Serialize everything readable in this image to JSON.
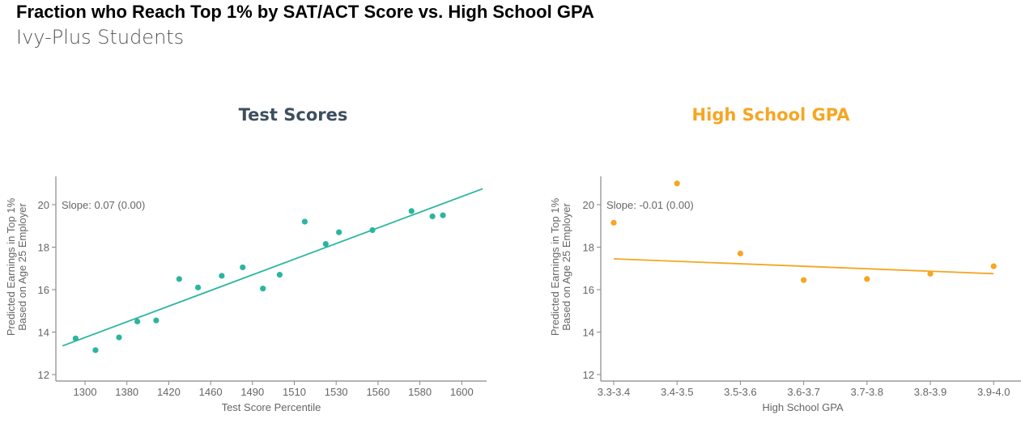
{
  "title": "Fraction who Reach Top 1% by SAT/ACT Score vs. High School GPA",
  "subtitle": "Ivy-Plus Students",
  "chart_data": [
    {
      "type": "scatter",
      "title": "Test Scores",
      "title_color": "#3d4f5f",
      "color": "#2bb5a0",
      "xlabel": "Test Score Percentile",
      "ylabel": [
        "Predicted Earnings in Top 1%",
        "Based on Age 25 Employer"
      ],
      "x_ticks": [
        1300,
        1380,
        1420,
        1460,
        1490,
        1510,
        1530,
        1560,
        1580,
        1600
      ],
      "y_ticks": [
        12,
        14,
        16,
        18,
        20
      ],
      "ylim": [
        11.7,
        21.3
      ],
      "grid": false,
      "annotation": "Slope: 0.07 (0.00)",
      "points": [
        {
          "x": 1282,
          "y": 13.7
        },
        {
          "x": 1320,
          "y": 13.15
        },
        {
          "x": 1365,
          "y": 13.75
        },
        {
          "x": 1390,
          "y": 14.5
        },
        {
          "x": 1408,
          "y": 14.55
        },
        {
          "x": 1430,
          "y": 16.5
        },
        {
          "x": 1448,
          "y": 16.1
        },
        {
          "x": 1468,
          "y": 16.65
        },
        {
          "x": 1483,
          "y": 17.05
        },
        {
          "x": 1495,
          "y": 16.05
        },
        {
          "x": 1503,
          "y": 16.7
        },
        {
          "x": 1515,
          "y": 19.2
        },
        {
          "x": 1525,
          "y": 18.15
        },
        {
          "x": 1532,
          "y": 18.7
        },
        {
          "x": 1556,
          "y": 18.8
        },
        {
          "x": 1576,
          "y": 19.7
        },
        {
          "x": 1586,
          "y": 19.45
        },
        {
          "x": 1591,
          "y": 19.5
        }
      ],
      "fit_line": [
        {
          "x": 1257,
          "y": 13.35
        },
        {
          "x": 1610,
          "y": 20.75
        }
      ]
    },
    {
      "type": "scatter",
      "title": "High School GPA",
      "title_color": "#f5a623",
      "color": "#f5a623",
      "xlabel": "High School GPA",
      "ylabel": [
        "Predicted Earnings in Top 1%",
        "Based on Age 25 Employer"
      ],
      "categories": [
        "3.3-3.4",
        "3.4-3.5",
        "3.5-3.6",
        "3.6-3.7",
        "3.7-3.8",
        "3.8-3.9",
        "3.9-4.0"
      ],
      "y_ticks": [
        12,
        14,
        16,
        18,
        20
      ],
      "ylim": [
        11.7,
        21.3
      ],
      "grid": false,
      "annotation": "Slope: -0.01 (0.00)",
      "values": [
        19.15,
        21.0,
        17.7,
        16.45,
        16.5,
        16.75,
        17.1
      ],
      "fit_line": [
        17.45,
        16.75
      ]
    }
  ]
}
